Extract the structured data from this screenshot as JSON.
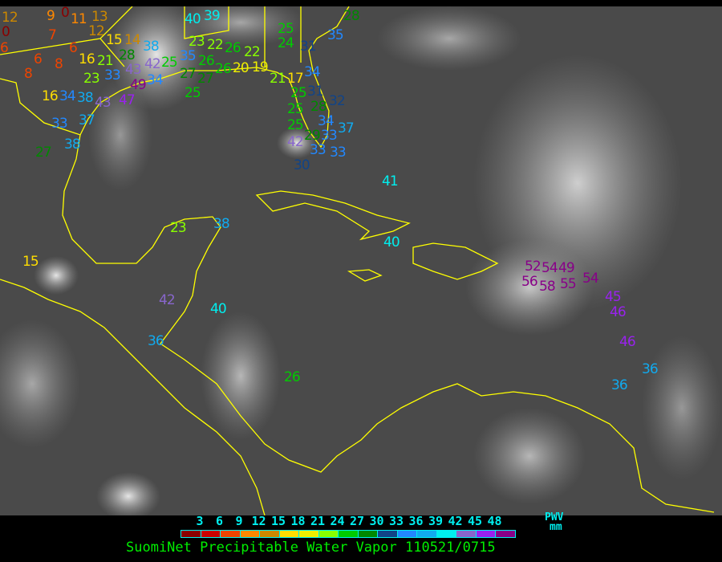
{
  "legend": {
    "ticks": [
      "3",
      "6",
      "9",
      "12",
      "15",
      "18",
      "21",
      "24",
      "27",
      "30",
      "33",
      "36",
      "39",
      "42",
      "45",
      "48"
    ],
    "colors": [
      "#8b0000",
      "#cc0000",
      "#ee4400",
      "#ff8800",
      "#cc8800",
      "#ffdd00",
      "#eeee00",
      "#88ff00",
      "#00cc00",
      "#008800",
      "#114488",
      "#2288ff",
      "#11aaee",
      "#00eeee",
      "#8866cc",
      "#9922ee",
      "#880088"
    ],
    "unit_line1": "PWV",
    "unit_line2": "mm"
  },
  "title": "SuomiNet Precipitable Water Vapor 110521/0715",
  "colors": {
    "coastline": "#ffff00",
    "background": "#000000"
  },
  "stations": [
    "12",
    "0",
    "9",
    "0",
    "11",
    "13",
    "12",
    "7",
    "6",
    "6",
    "15",
    "14",
    "6",
    "8",
    "16",
    "21",
    "28",
    "38",
    "43",
    "42",
    "25",
    "35",
    "8",
    "23",
    "33",
    "49",
    "34",
    "16",
    "34",
    "38",
    "43",
    "47",
    "33",
    "37",
    "38",
    "27",
    "40",
    "39",
    "23",
    "22",
    "26",
    "22",
    "26",
    "27",
    "27",
    "26",
    "20",
    "19",
    "25",
    "25",
    "24",
    "31",
    "35",
    "21",
    "17",
    "34",
    "25",
    "31",
    "25",
    "28",
    "32",
    "25",
    "34",
    "29",
    "33",
    "37",
    "42",
    "33",
    "33",
    "30",
    "28",
    "41",
    "40",
    "23",
    "38",
    "15",
    "42",
    "40",
    "36",
    "26",
    "52",
    "54",
    "49",
    "56",
    "58",
    "55",
    "54",
    "45",
    "46",
    "46",
    "36",
    "36"
  ]
}
